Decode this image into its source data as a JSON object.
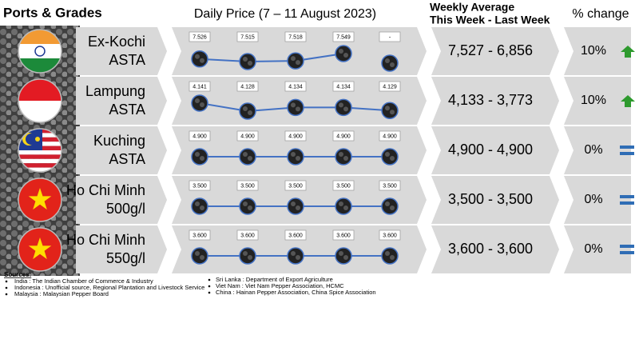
{
  "header": {
    "ports_title": "Ports & Grades",
    "daily_title": "Daily Price (7 – 11 August 2023)",
    "weekly_title": [
      "Weekly Average",
      "This Week - Last Week"
    ],
    "change_title": "% change"
  },
  "rows": [
    {
      "port": "Ex-Kochi",
      "grade": "ASTA",
      "prices": [
        7.526,
        7.515,
        7.518,
        7.549,
        null
      ],
      "price_labels": [
        "7.526",
        "7.515",
        "7.518",
        "7.549",
        "-"
      ],
      "weekly": "7,527 - 6,856",
      "change": "10%",
      "trend": "up"
    },
    {
      "port": "Lampung",
      "grade": "ASTA",
      "prices": [
        4.141,
        4.128,
        4.134,
        4.134,
        4.129
      ],
      "price_labels": [
        "4.141",
        "4.128",
        "4.134",
        "4.134",
        "4.129"
      ],
      "weekly": "4,133 - 3,773",
      "change": "10%",
      "trend": "up"
    },
    {
      "port": "Kuching",
      "grade": "ASTA",
      "prices": [
        4.9,
        4.9,
        4.9,
        4.9,
        4.9
      ],
      "price_labels": [
        "4.900",
        "4.900",
        "4.900",
        "4.900",
        "4.900"
      ],
      "weekly": "4,900 - 4,900",
      "change": "0%",
      "trend": "flat"
    },
    {
      "port": "Ho Chi Minh",
      "grade": "500g/l",
      "prices": [
        3.5,
        3.5,
        3.5,
        3.5,
        3.5
      ],
      "price_labels": [
        "3.500",
        "3.500",
        "3.500",
        "3.500",
        "3.500"
      ],
      "weekly": "3,500 - 3,500",
      "change": "0%",
      "trend": "flat"
    },
    {
      "port": "Ho Chi Minh",
      "grade": "550g/l",
      "prices": [
        3.6,
        3.6,
        3.6,
        3.6,
        3.6
      ],
      "price_labels": [
        "3.600",
        "3.600",
        "3.600",
        "3.600",
        "3.600"
      ],
      "weekly": "3,600 - 3,600",
      "change": "0%",
      "trend": "flat"
    }
  ],
  "sources": {
    "title": "Sources:",
    "left": [
      "India : The Indian Chamber of Commerce & Industry",
      "Indonesia : Unofficial source, Regional Plantation and Livestock Service",
      "Malaysia : Malaysian Pepper Board"
    ],
    "right": [
      "Sri Lanka : Department of Export Agriculture",
      "Viet Nam : Viet Nam Pepper Association, HCMC",
      "China : Hainan Pepper Association, China Spice Association"
    ]
  }
}
